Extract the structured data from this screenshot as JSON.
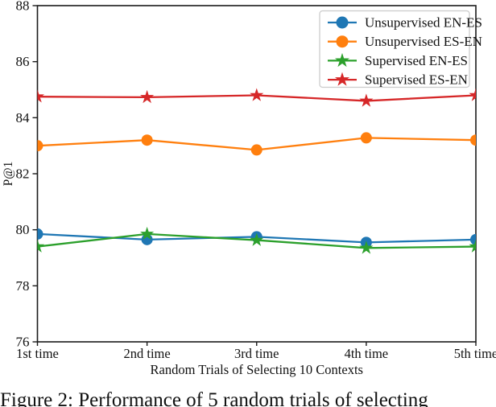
{
  "figure": {
    "caption": "Figure 2: Performance of 5 random trials of selecting"
  },
  "chart_data": {
    "type": "line",
    "categories": [
      "1st time",
      "2nd time",
      "3rd time",
      "4th time",
      "5th time"
    ],
    "series": [
      {
        "name": "Unsupervised EN-ES",
        "color": "#1f77b4",
        "marker": "circle",
        "values": [
          79.85,
          79.65,
          79.75,
          79.55,
          79.65
        ]
      },
      {
        "name": "Unsupervised ES-EN",
        "color": "#ff7f0e",
        "marker": "circle",
        "values": [
          83.0,
          83.2,
          82.85,
          83.28,
          83.2
        ]
      },
      {
        "name": "Supervised EN-ES",
        "color": "#2ca02c",
        "marker": "star",
        "values": [
          79.4,
          79.85,
          79.63,
          79.35,
          79.4
        ]
      },
      {
        "name": "Supervised ES-EN",
        "color": "#d62728",
        "marker": "star",
        "values": [
          84.75,
          84.73,
          84.8,
          84.6,
          84.8
        ]
      }
    ],
    "title": "",
    "xlabel": "Random Trials of Selecting 10 Contexts",
    "ylabel": "P@1",
    "ylim": [
      76,
      88
    ],
    "yticks": [
      76,
      78,
      80,
      82,
      84,
      86,
      88
    ],
    "legend_position": "upper right",
    "grid": false,
    "axis_color": "#1a1a1a",
    "legend_border_color": "#cccccc"
  }
}
